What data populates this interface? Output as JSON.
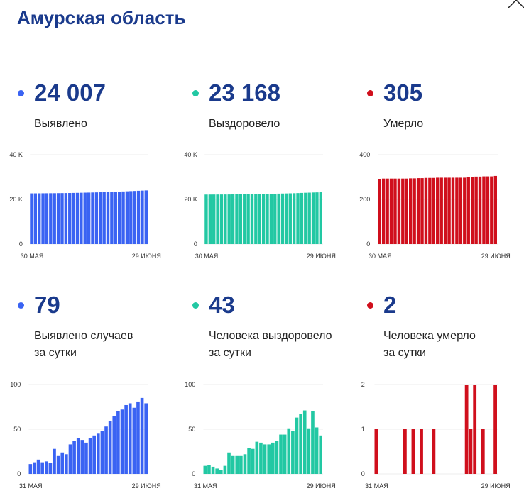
{
  "header": {
    "title": "Амурская область",
    "close_icon": "close-icon"
  },
  "colors": {
    "text_primary": "#1a3a8c",
    "cases": "#3a63f3",
    "recovered": "#22c8a3",
    "deaths": "#d00f1c"
  },
  "stats": [
    {
      "value": "24 007",
      "label": [
        "Выявлено"
      ],
      "color": "#3a63f3",
      "icon": "dot-icon"
    },
    {
      "value": "23 168",
      "label": [
        "Выздоровело"
      ],
      "color": "#22c8a3",
      "icon": "dot-icon"
    },
    {
      "value": "305",
      "label": [
        "Умерло"
      ],
      "color": "#d00f1c",
      "icon": "dot-icon"
    },
    {
      "value": "79",
      "label": [
        "Выявлено случаев",
        "за сутки"
      ],
      "color": "#3a63f3",
      "icon": "dot-icon"
    },
    {
      "value": "43",
      "label": [
        "Человека выздоровело",
        "за сутки"
      ],
      "color": "#22c8a3",
      "icon": "dot-icon"
    },
    {
      "value": "2",
      "label": [
        "Человека умерло",
        "за сутки"
      ],
      "color": "#d00f1c",
      "icon": "dot-icon"
    }
  ],
  "chart_data": [
    {
      "type": "bar",
      "color": "#3a63f3",
      "grid": true,
      "ylim": [
        0,
        40000
      ],
      "yticks": [
        {
          "value": 40000,
          "label": "40 K"
        },
        {
          "value": 20000,
          "label": "20 K"
        },
        {
          "value": 0,
          "label": "0"
        }
      ],
      "xticks": [
        "30 МАЯ",
        "29 ИЮНЯ"
      ],
      "values": [
        22681,
        22692,
        22705,
        22721,
        22734,
        22748,
        22760,
        22788,
        22808,
        22832,
        22854,
        22887,
        22924,
        22964,
        23002,
        23037,
        23077,
        23120,
        23165,
        23213,
        23266,
        23325,
        23390,
        23460,
        23532,
        23609,
        23688,
        23762,
        23843,
        23928,
        24007
      ]
    },
    {
      "type": "bar",
      "color": "#22c8a3",
      "grid": true,
      "ylim": [
        0,
        40000
      ],
      "yticks": [
        {
          "value": 40000,
          "label": "40 K"
        },
        {
          "value": 20000,
          "label": "20 K"
        },
        {
          "value": 0,
          "label": "0"
        }
      ],
      "xticks": [
        "30 МАЯ",
        "29 ИЮНЯ"
      ],
      "values": [
        22146,
        22155,
        22165,
        22173,
        22179,
        22183,
        22192,
        22216,
        22236,
        22256,
        22276,
        22298,
        22327,
        22355,
        22391,
        22426,
        22459,
        22492,
        22527,
        22564,
        22608,
        22652,
        22703,
        22751,
        22814,
        22881,
        22952,
        23003,
        23073,
        23125,
        23168
      ]
    },
    {
      "type": "bar",
      "color": "#d00f1c",
      "grid": true,
      "ylim": [
        0,
        400
      ],
      "yticks": [
        {
          "value": 400,
          "label": "400"
        },
        {
          "value": 200,
          "label": "200"
        },
        {
          "value": 0,
          "label": "0"
        }
      ],
      "xticks": [
        "30 МАЯ",
        "29 ИЮНЯ"
      ],
      "values": [
        292,
        293,
        293,
        293,
        293,
        293,
        293,
        293,
        294,
        294,
        295,
        295,
        296,
        296,
        296,
        297,
        297,
        297,
        297,
        297,
        297,
        297,
        297,
        299,
        300,
        302,
        302,
        303,
        303,
        303,
        305
      ]
    },
    {
      "type": "bar",
      "color": "#3a63f3",
      "grid": true,
      "ylim": [
        0,
        100
      ],
      "yticks": [
        {
          "value": 100,
          "label": "100"
        },
        {
          "value": 50,
          "label": "50"
        },
        {
          "value": 0,
          "label": "0"
        }
      ],
      "xticks": [
        "31 МАЯ",
        "29 ИЮНЯ"
      ],
      "values": [
        11,
        13,
        16,
        13,
        14,
        12,
        28,
        20,
        24,
        22,
        33,
        37,
        40,
        38,
        35,
        40,
        43,
        45,
        48,
        53,
        59,
        65,
        70,
        72,
        77,
        79,
        74,
        81,
        85,
        79
      ]
    },
    {
      "type": "bar",
      "color": "#22c8a3",
      "grid": true,
      "ylim": [
        0,
        100
      ],
      "yticks": [
        {
          "value": 100,
          "label": "100"
        },
        {
          "value": 50,
          "label": "50"
        },
        {
          "value": 0,
          "label": "0"
        }
      ],
      "xticks": [
        "31 МАЯ",
        "29 ИЮНЯ"
      ],
      "values": [
        9,
        10,
        8,
        6,
        4,
        9,
        24,
        20,
        20,
        20,
        22,
        29,
        28,
        36,
        35,
        33,
        33,
        35,
        37,
        44,
        44,
        51,
        48,
        63,
        67,
        71,
        51,
        70,
        52,
        43
      ]
    },
    {
      "type": "bar",
      "color": "#d00f1c",
      "grid": true,
      "ylim": [
        0,
        2
      ],
      "yticks": [
        {
          "value": 2,
          "label": "2"
        },
        {
          "value": 1,
          "label": "1"
        },
        {
          "value": 0,
          "label": "0"
        }
      ],
      "xticks": [
        "31 МАЯ",
        "29 ИЮНЯ"
      ],
      "values": [
        1,
        0,
        0,
        0,
        0,
        0,
        0,
        1,
        0,
        1,
        0,
        1,
        0,
        0,
        1,
        0,
        0,
        0,
        0,
        0,
        0,
        0,
        2,
        1,
        2,
        0,
        1,
        0,
        0,
        2
      ]
    }
  ]
}
